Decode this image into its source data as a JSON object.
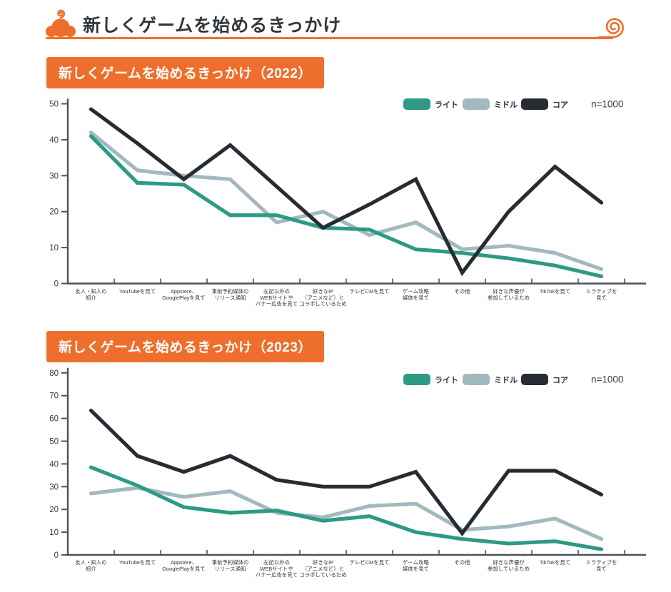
{
  "header": {
    "title": "新しくゲームを始めるきっかけ",
    "accent_color": "#ee6f2d"
  },
  "colors": {
    "orange": "#ee6f2d",
    "light_series": "#2e9a83",
    "middle_series": "#a2b9bd",
    "core_series": "#272b33",
    "axis": "#4d525a",
    "title_text": "#32373d"
  },
  "charts": [
    {
      "title": "新しくゲームを始めるきっかけ（2022）",
      "n_label": "n=1000",
      "chart_data": {
        "type": "line",
        "title": "新しくゲームを始めるきっかけ（2022）",
        "categories": [
          "友人・知人の\n紹介",
          "YouTubeを見て",
          "Appstore、\nGooglePlayを見て",
          "事前予約媒体の\nリリース通知",
          "左記以外の\nWEBサイトや\nバナー広告を見て",
          "好きなIP\n（アニメなど）と\nコラボしているため",
          "テレビCMを見て",
          "ゲーム攻略\n媒体を見て",
          "その他",
          "好きな声優が\n参加しているため",
          "TikTokを見て",
          "ミラティブを\n見て"
        ],
        "series": [
          {
            "name": "ミドル",
            "color": "#a2b9bd",
            "values": [
              42,
              31.5,
              30,
              29,
              17,
              20,
              13.5,
              17,
              9.5,
              10.5,
              8.5,
              4
            ]
          },
          {
            "name": "ライト",
            "color": "#2e9a83",
            "values": [
              41,
              28,
              27.5,
              19,
              19,
              15.5,
              15,
              9.5,
              8.5,
              7,
              5,
              2
            ]
          },
          {
            "name": "コア",
            "color": "#272b33",
            "values": [
              48.5,
              39,
              29,
              38.5,
              27,
              15.5,
              22,
              29,
              3,
              20,
              32.5,
              22.5
            ]
          }
        ],
        "legend_order": [
          "ライト",
          "ミドル",
          "コア"
        ],
        "legend_position": "top-right",
        "grid": false,
        "ylim": [
          0,
          50
        ],
        "ytick_step": 10
      }
    },
    {
      "title": "新しくゲームを始めるきっかけ（2023）",
      "n_label": "n=1000",
      "chart_data": {
        "type": "line",
        "title": "新しくゲームを始めるきっかけ（2023）",
        "categories": [
          "友人・知人の\n紹介",
          "YouTubeを見て",
          "Appstore、\nGooglePlayを見て",
          "事前予約媒体の\nリリース通知",
          "左記以外の\nWEBサイトや\nバナー広告を見て",
          "好きなIP\n（アニメなど）と\nコラボしているため",
          "テレビCMを見て",
          "ゲーム攻略\n媒体を見て",
          "その他",
          "好きな声優が\n参加しているため",
          "TikTokを見て",
          "ミラティブを\n見て"
        ],
        "series": [
          {
            "name": "ミドル",
            "color": "#a2b9bd",
            "values": [
              27,
              29.5,
              25.5,
              28,
              18.5,
              16.5,
              21.5,
              22.5,
              11,
              12.5,
              16,
              7
            ]
          },
          {
            "name": "ライト",
            "color": "#2e9a83",
            "values": [
              38.5,
              30.5,
              21,
              18.5,
              19.5,
              15,
              17,
              10,
              7,
              5,
              6,
              2.5
            ]
          },
          {
            "name": "コア",
            "color": "#272b33",
            "values": [
              63.5,
              43.5,
              36.5,
              43.5,
              33,
              30,
              30,
              36.5,
              9.5,
              37,
              37,
              26.5
            ]
          }
        ],
        "legend_order": [
          "ライト",
          "ミドル",
          "コア"
        ],
        "legend_position": "top-right",
        "grid": false,
        "ylim": [
          0,
          80
        ],
        "ytick_step": 10
      }
    }
  ]
}
